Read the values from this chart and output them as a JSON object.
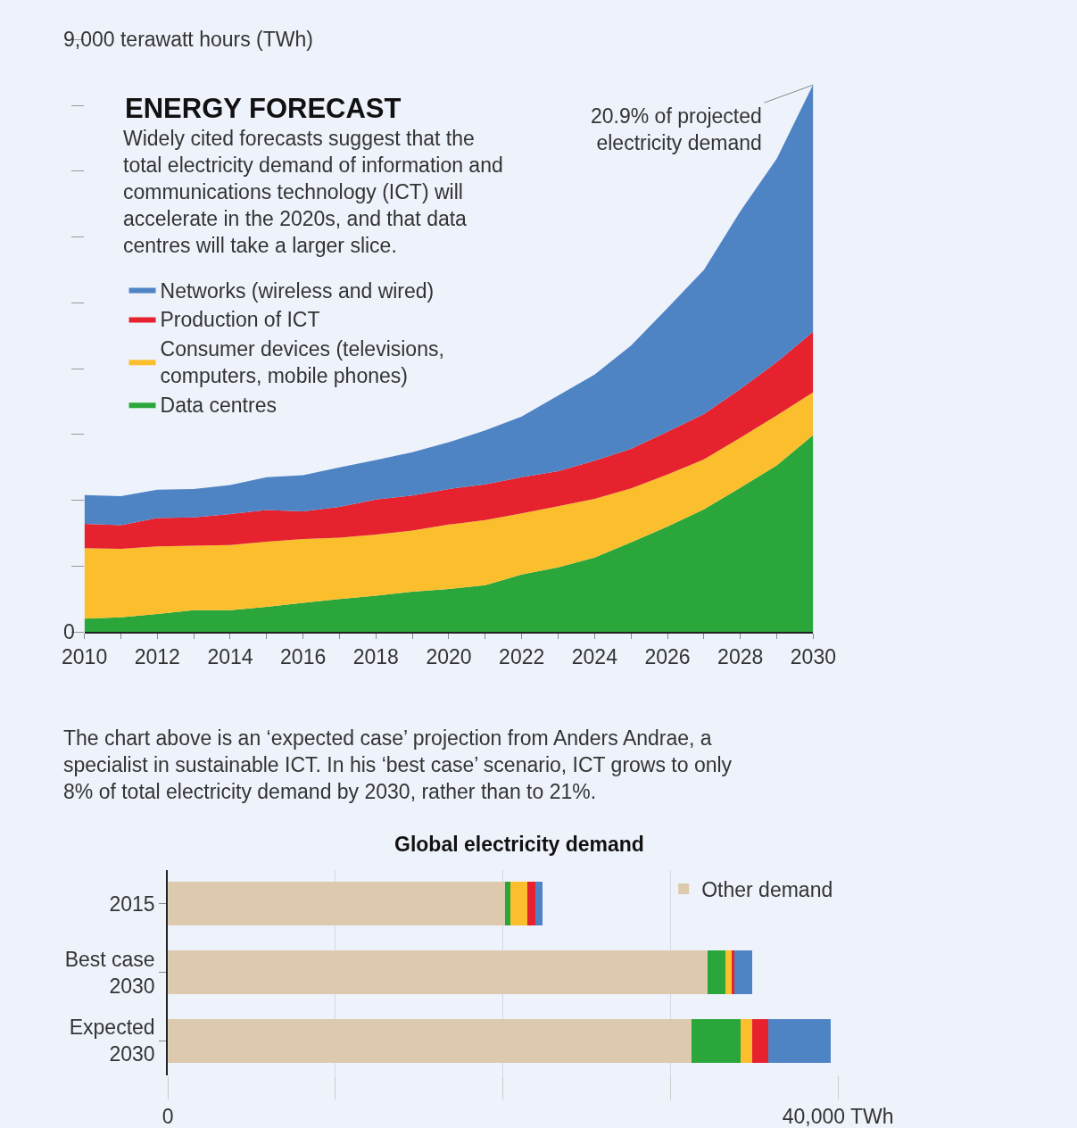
{
  "chart_data": [
    {
      "type": "area",
      "title": "ENERGY FORECAST",
      "subtitle": "Widely cited forecasts suggest that the total electricity demand of information and communications technology (ICT) will accelerate in the 2020s, and that data centres will take a larger slice.",
      "stacked": true,
      "legend": "left",
      "grid": false,
      "x": [
        2010,
        2011,
        2012,
        2013,
        2014,
        2015,
        2016,
        2017,
        2018,
        2019,
        2020,
        2021,
        2022,
        2023,
        2024,
        2025,
        2026,
        2027,
        2028,
        2029,
        2030
      ],
      "xlim": [
        2010,
        2030
      ],
      "xticks": [
        2010,
        {
          "value": 2011,
          "label": null
        },
        2012,
        {
          "value": 2013,
          "label": null
        },
        2014,
        {
          "value": 2015,
          "label": null
        },
        2016,
        {
          "value": 2017,
          "label": null
        },
        2018,
        {
          "value": 2019,
          "label": null
        },
        2020,
        {
          "value": 2021,
          "label": null
        },
        2022,
        {
          "value": 2023,
          "label": null
        },
        2024,
        {
          "value": 2025,
          "label": null
        },
        2026,
        {
          "value": 2027,
          "label": null
        },
        2028,
        {
          "value": 2029,
          "label": null
        },
        2030
      ],
      "ylim": [
        0,
        9000
      ],
      "yticks": [
        0,
        {
          "value": 1000,
          "label": null
        },
        {
          "value": 2000,
          "label": null
        },
        {
          "value": 3000,
          "label": null
        },
        {
          "value": 4000,
          "label": null
        },
        {
          "value": 5000,
          "label": null
        },
        {
          "value": 6000,
          "label": null
        },
        {
          "value": 7000,
          "label": null
        },
        {
          "value": 8000,
          "label": null
        },
        {
          "value": 9000,
          "label": "9,000 terawatt hours (TWh)"
        }
      ],
      "series": [
        {
          "name": "Data centres",
          "color": "#2aa63a",
          "values": [
            200,
            220,
            270,
            330,
            330,
            380,
            440,
            500,
            550,
            610,
            650,
            710,
            870,
            980,
            1130,
            1360,
            1600,
            1860,
            2190,
            2530,
            2990
          ]
        },
        {
          "name": "Consumer devices (televisions, computers, mobile phones)",
          "color": "#fbbf2d",
          "values": [
            1070,
            1040,
            1030,
            980,
            990,
            990,
            970,
            930,
            930,
            930,
            980,
            990,
            930,
            930,
            890,
            820,
            790,
            760,
            760,
            760,
            650
          ]
        },
        {
          "name": "Production of ICT",
          "color": "#e5222d",
          "values": [
            370,
            360,
            430,
            430,
            470,
            480,
            420,
            470,
            530,
            530,
            540,
            540,
            550,
            530,
            580,
            600,
            650,
            690,
            740,
            810,
            920
          ]
        },
        {
          "name": "Networks (wireless and wired)",
          "color": "#4f84c4",
          "values": [
            440,
            440,
            430,
            430,
            440,
            500,
            550,
            600,
            600,
            660,
            710,
            820,
            920,
            1150,
            1310,
            1570,
            1880,
            2190,
            2700,
            3090,
            3760
          ]
        }
      ],
      "annotations": [
        {
          "text": "20.9% of projected electricity demand",
          "x": 2030,
          "y": 8310
        }
      ]
    },
    {
      "type": "bar",
      "orientation": "horizontal",
      "stacked": true,
      "title": "Global electricity demand",
      "legend": "top right",
      "grid": "x",
      "annotations": [
        "The chart above is an ‘expected case’ projection from Anders Andrae, a specialist in sustainable ICT. In his ‘best case’ scenario, ICT grows to only 8% of total electricity demand by 2030, rather than to 21%."
      ],
      "categories": [
        "2015",
        "Best case 2030",
        "Expected 2030"
      ],
      "xlim": [
        0,
        40000
      ],
      "xticks": [
        0,
        {
          "value": 10000,
          "label": null
        },
        {
          "value": 20000,
          "label": null
        },
        {
          "value": 30000,
          "label": null
        },
        {
          "value": 40000,
          "label": "40,000 TWh"
        }
      ],
      "series": [
        {
          "name": "Other demand",
          "color": "#dcc9ae",
          "values": [
            20100,
            32220,
            31280
          ]
        },
        {
          "color": "#2aa63a",
          "values": [
            340,
            1060,
            2930
          ]
        },
        {
          "color": "#fbbf2d",
          "values": [
            1030,
            370,
            690
          ]
        },
        {
          "color": "#e5222d",
          "values": [
            440,
            160,
            930
          ]
        },
        {
          "color": "#4f84c4",
          "values": [
            460,
            1090,
            3710
          ]
        }
      ]
    }
  ]
}
